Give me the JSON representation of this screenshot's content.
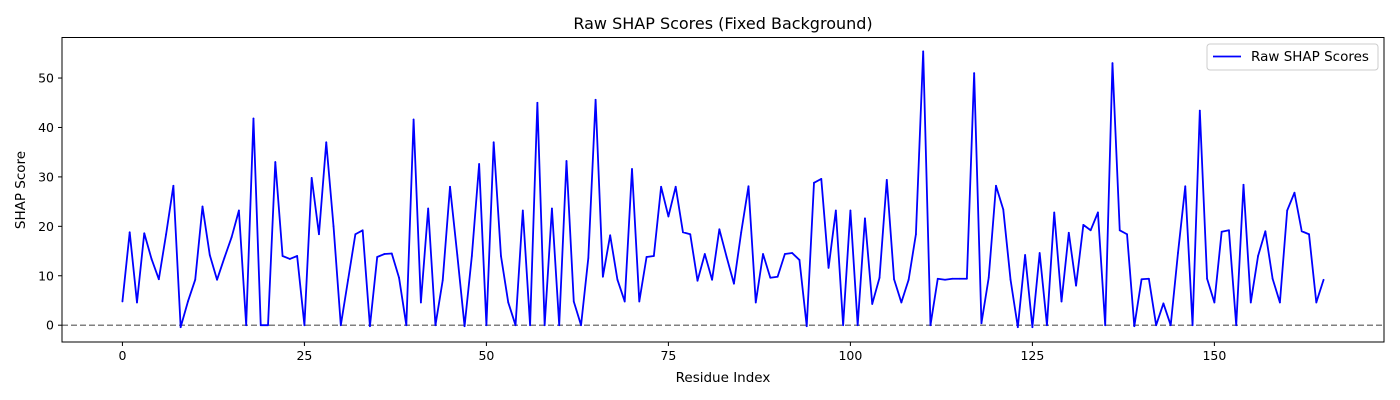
{
  "chart_data": {
    "type": "line",
    "title": "Raw SHAP Scores (Fixed Background)",
    "xlabel": "Residue Index",
    "ylabel": "SHAP Score",
    "xlim": [
      -8.3,
      173.3
    ],
    "ylim": [
      -3.4,
      58.2
    ],
    "xticks": [
      0,
      25,
      50,
      75,
      100,
      125,
      150
    ],
    "yticks": [
      0,
      10,
      20,
      30,
      40,
      50
    ],
    "grid": false,
    "legend_position": "top-right",
    "reference_line": {
      "y": 0,
      "style": "dashed",
      "color": "#808080"
    },
    "series": [
      {
        "name": "Raw SHAP Scores",
        "color": "#0000ff",
        "x": [
          0,
          1,
          2,
          3,
          4,
          5,
          6,
          7,
          8,
          9,
          10,
          11,
          12,
          13,
          14,
          15,
          16,
          17,
          18,
          19,
          20,
          21,
          22,
          23,
          24,
          25,
          26,
          27,
          28,
          29,
          30,
          31,
          32,
          33,
          34,
          35,
          36,
          37,
          38,
          39,
          40,
          41,
          42,
          43,
          44,
          45,
          46,
          47,
          48,
          49,
          50,
          51,
          52,
          53,
          54,
          55,
          56,
          57,
          58,
          59,
          60,
          61,
          62,
          63,
          64,
          65,
          66,
          67,
          68,
          69,
          70,
          71,
          72,
          73,
          74,
          75,
          76,
          77,
          78,
          79,
          80,
          81,
          82,
          83,
          84,
          85,
          86,
          87,
          88,
          89,
          90,
          91,
          92,
          93,
          94,
          95,
          96,
          97,
          98,
          99,
          100,
          101,
          102,
          103,
          104,
          105,
          106,
          107,
          108,
          109,
          110,
          111,
          112,
          113,
          114,
          115,
          116,
          117,
          118,
          119,
          120,
          121,
          122,
          123,
          124,
          125,
          126,
          127,
          128,
          129,
          130,
          131,
          132,
          133,
          134,
          135,
          136,
          137,
          138,
          139,
          140,
          141,
          142,
          143,
          144,
          145,
          146,
          147,
          148,
          149,
          150,
          151,
          152,
          153,
          154,
          155,
          156,
          157,
          158,
          159,
          160,
          161,
          162,
          163,
          164,
          165
        ],
        "values": [
          4.8,
          18.8,
          4.6,
          18.6,
          13.4,
          9.3,
          18.4,
          28.2,
          -0.4,
          4.8,
          9.2,
          24.0,
          14.2,
          9.2,
          13.6,
          17.8,
          23.2,
          0.0,
          41.8,
          0.0,
          0.0,
          33.0,
          14.0,
          13.4,
          14.0,
          0.0,
          29.8,
          18.4,
          37.0,
          20.0,
          0.0,
          9.2,
          18.4,
          19.2,
          -0.2,
          13.8,
          14.4,
          14.5,
          9.6,
          0.0,
          41.6,
          4.6,
          23.6,
          0.0,
          9.1,
          28.0,
          14.2,
          -0.2,
          14.0,
          32.6,
          0.0,
          37.0,
          14.0,
          4.6,
          0.0,
          23.2,
          0.0,
          45.0,
          0.0,
          23.6,
          0.0,
          33.2,
          4.8,
          0.0,
          13.6,
          45.6,
          9.8,
          18.2,
          9.2,
          4.8,
          31.6,
          4.8,
          13.8,
          14.0,
          28.0,
          22.0,
          28.0,
          18.8,
          18.4,
          9.0,
          14.4,
          9.2,
          19.4,
          13.8,
          8.4,
          18.8,
          28.1,
          4.6,
          14.4,
          9.6,
          9.8,
          14.4,
          14.6,
          13.2,
          -0.2,
          28.8,
          29.6,
          11.6,
          23.2,
          0.0,
          23.2,
          0.0,
          21.6,
          4.3,
          9.6,
          29.4,
          9.3,
          4.6,
          9.2,
          18.4,
          55.4,
          0.0,
          9.4,
          9.2,
          9.4,
          9.4,
          9.4,
          51.0,
          0.4,
          9.6,
          28.2,
          23.4,
          9.2,
          -0.4,
          14.2,
          -0.4,
          14.6,
          0.0,
          22.8,
          4.8,
          18.7,
          8.0,
          20.3,
          19.2,
          22.8,
          0.0,
          53.0,
          19.2,
          18.4,
          -0.2,
          9.3,
          9.4,
          0.0,
          4.4,
          0.0,
          14.6,
          28.1,
          0.0,
          43.4,
          9.4,
          4.6,
          18.9,
          19.2,
          0.0,
          28.4,
          4.6,
          14.0,
          19.0,
          9.4,
          4.6,
          23.2,
          26.8,
          19.0,
          18.4,
          4.6,
          9.2
        ]
      }
    ]
  }
}
